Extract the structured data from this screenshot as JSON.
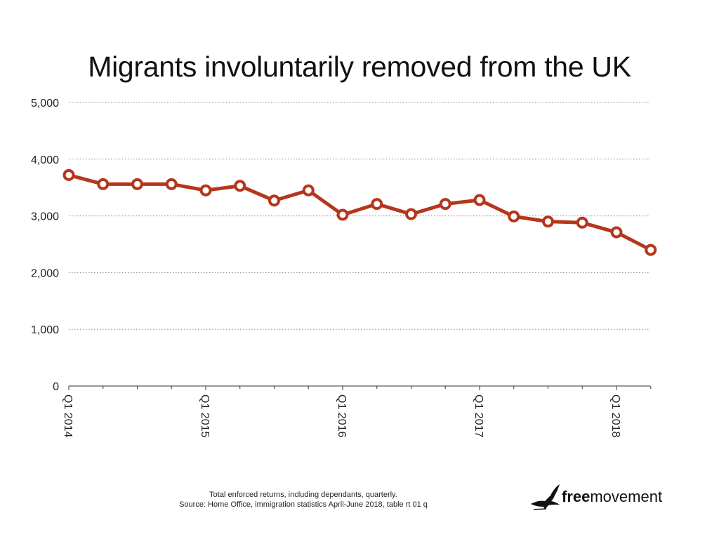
{
  "title": "Migrants involuntarily removed from the UK",
  "footnote": {
    "line1": "Total enforced returns, including dependants, quarterly.",
    "line2": "Source: Home Office, immigration statistics April-June 2018, table rt 01 q"
  },
  "logo": {
    "bold": "free",
    "rest": "movement"
  },
  "colors": {
    "line": "#b5361c",
    "grid": "#888888"
  },
  "chart_data": {
    "type": "line",
    "title": "Migrants involuntarily removed from the UK",
    "xlabel": "",
    "ylabel": "",
    "ylim": [
      0,
      5000
    ],
    "yticks": [
      0,
      1000,
      2000,
      3000,
      4000,
      5000
    ],
    "ytick_labels": [
      "0",
      "1,000",
      "2,000",
      "3,000",
      "4,000",
      "5,000"
    ],
    "x": [
      "Q1 2014",
      "Q2 2014",
      "Q3 2014",
      "Q4 2014",
      "Q1 2015",
      "Q2 2015",
      "Q3 2015",
      "Q4 2015",
      "Q1 2016",
      "Q2 2016",
      "Q3 2016",
      "Q4 2016",
      "Q1 2017",
      "Q2 2017",
      "Q3 2017",
      "Q4 2017",
      "Q1 2018",
      "Q2 2018"
    ],
    "xtick_labels": [
      "Q1 2014",
      "Q1 2015",
      "Q1 2016",
      "Q1 2017",
      "Q1 2018"
    ],
    "grid": true,
    "series": [
      {
        "values": [
          3720,
          3560,
          3560,
          3560,
          3450,
          3530,
          3270,
          3450,
          3020,
          3210,
          3030,
          3210,
          3280,
          2990,
          2900,
          2880,
          2710,
          2400
        ]
      }
    ]
  }
}
